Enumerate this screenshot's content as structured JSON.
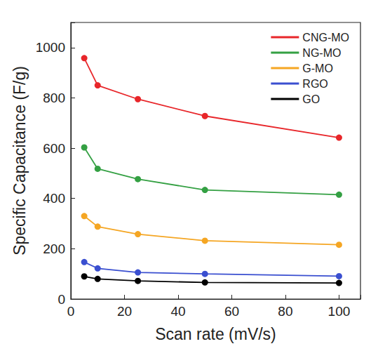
{
  "chart_data": {
    "type": "line",
    "x_label": "Scan rate (mV/s)",
    "y_label": "Specific Capacitance (F/g)",
    "x": [
      5,
      10,
      25,
      50,
      100
    ],
    "series": [
      {
        "name": "CNG-MO",
        "color": "#e8262a",
        "values": [
          958,
          850,
          795,
          728,
          642
        ]
      },
      {
        "name": "NG-MO",
        "color": "#34a043",
        "values": [
          603,
          518,
          477,
          434,
          415
        ]
      },
      {
        "name": "G-MO",
        "color": "#f5a623",
        "values": [
          330,
          288,
          258,
          232,
          216
        ]
      },
      {
        "name": "RGO",
        "color": "#3a4fd0",
        "values": [
          147,
          122,
          106,
          100,
          91
        ]
      },
      {
        "name": "GO",
        "color": "#000000",
        "values": [
          90,
          80,
          72,
          66,
          64
        ]
      }
    ],
    "xlim": [
      0,
      108
    ],
    "xticks": [
      0,
      20,
      40,
      60,
      80,
      100
    ],
    "ylim": [
      0,
      1100
    ],
    "yticks": [
      0,
      200,
      400,
      600,
      800,
      1000
    ],
    "grid": false,
    "legend": "upper right",
    "marker": "circle"
  }
}
